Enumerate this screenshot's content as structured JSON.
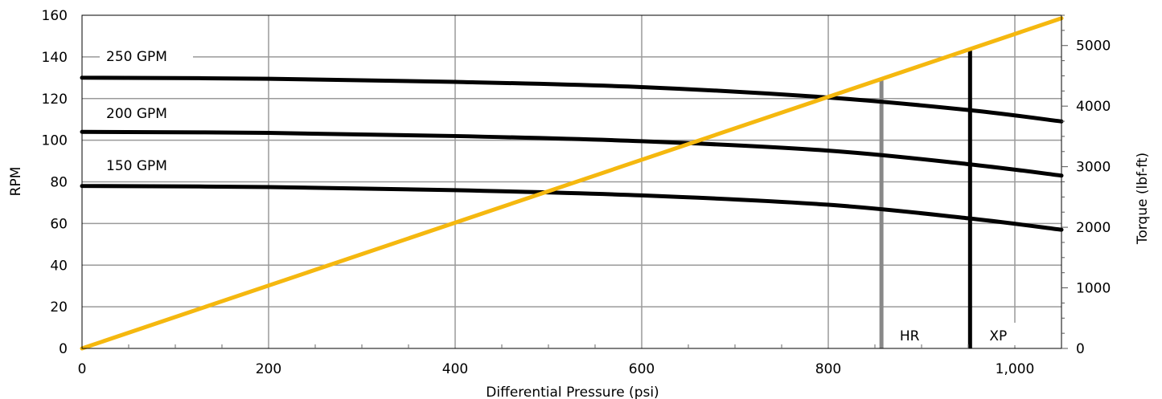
{
  "chart_data": {
    "type": "line",
    "title": "",
    "xlabel": "Differential Pressure (psi)",
    "ylabel": "RPM",
    "y2label": "Torque (lbf-ft)",
    "xlim": [
      0,
      1050
    ],
    "ylim": [
      0,
      160
    ],
    "y2lim": [
      0,
      5500
    ],
    "grid": true,
    "x_ticks": [
      0,
      200,
      400,
      600,
      800,
      1000
    ],
    "x_tick_labels": [
      "0",
      "200",
      "400",
      "600",
      "800",
      "1,000"
    ],
    "y_ticks": [
      0,
      20,
      40,
      60,
      80,
      100,
      120,
      140,
      160
    ],
    "y_tick_labels": [
      "0",
      "20",
      "40",
      "60",
      "80",
      "100",
      "120",
      "140",
      "160"
    ],
    "y2_ticks": [
      0,
      1000,
      2000,
      3000,
      4000,
      5000
    ],
    "y2_tick_labels": [
      "0",
      "1000",
      "2000",
      "3000",
      "4000",
      "5000"
    ],
    "series": [
      {
        "name": "250 GPM",
        "axis": "left",
        "color": "#000000",
        "x": [
          0,
          200,
          400,
          600,
          800,
          950,
          1050
        ],
        "y": [
          130,
          129.5,
          128,
          125.5,
          120.5,
          114.5,
          109
        ]
      },
      {
        "name": "200 GPM",
        "axis": "left",
        "color": "#000000",
        "x": [
          0,
          200,
          400,
          600,
          800,
          950,
          1050
        ],
        "y": [
          104,
          103.5,
          102,
          99.5,
          95,
          88.5,
          83
        ]
      },
      {
        "name": "150 GPM",
        "axis": "left",
        "color": "#000000",
        "x": [
          0,
          200,
          400,
          600,
          800,
          950,
          1050
        ],
        "y": [
          78,
          77.5,
          76,
          73.5,
          69,
          62.5,
          57
        ]
      },
      {
        "axis": "right",
        "color": "#F5B80F",
        "x": [
          0,
          1050
        ],
        "y": [
          0,
          5450
        ]
      }
    ],
    "vertical_markers": [
      {
        "label": "HR",
        "x": 857,
        "y_top": 130,
        "color": "#888888"
      },
      {
        "label": "XP",
        "x": 952,
        "y_top": 143,
        "color": "#000000"
      }
    ]
  }
}
